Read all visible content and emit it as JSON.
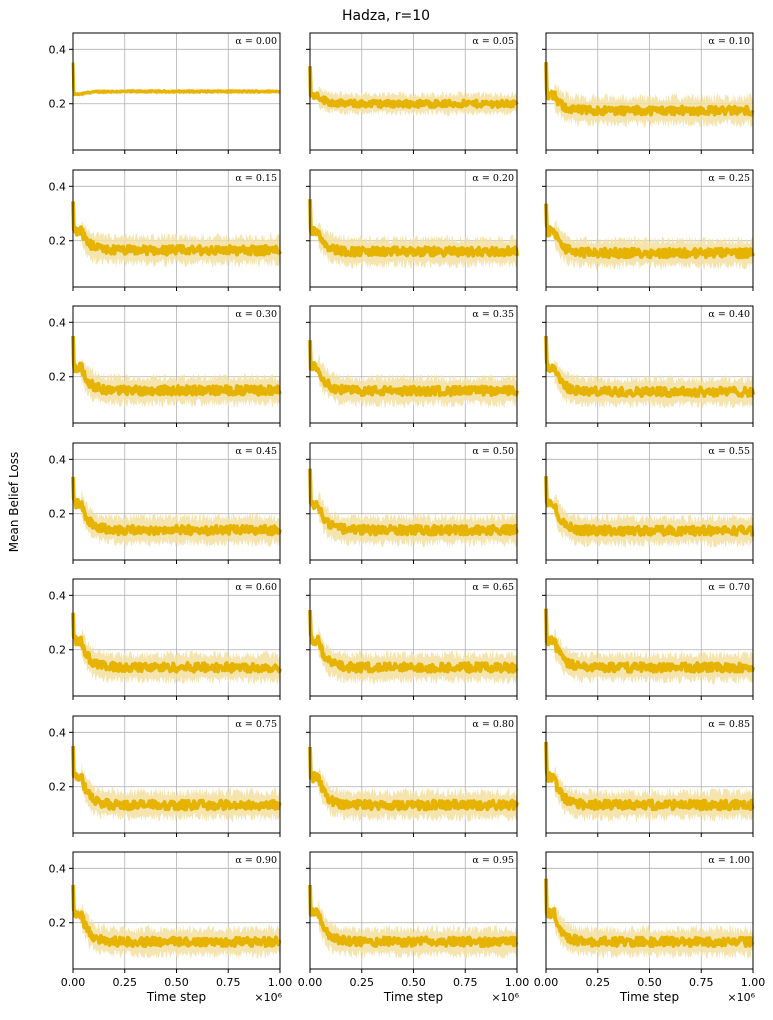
{
  "title": "Hadza, r=10",
  "ylabel": "Mean Belief Loss",
  "xlabel": "Time step",
  "x_multiplier": "×10⁶",
  "colors": {
    "line": "#e6b400",
    "band": "#f3dfa0",
    "grid": "#b0b0b0"
  },
  "chart_data": {
    "type": "line",
    "layout": "7x3 small multiples",
    "xlim": [
      0,
      1000000
    ],
    "ylim": [
      0.03,
      0.46
    ],
    "x_ticks": [
      0,
      250000,
      500000,
      750000,
      1000000
    ],
    "x_tick_labels": [
      "0.00",
      "0.25",
      "0.50",
      "0.75",
      "1.00"
    ],
    "y_ticks": [
      0.2,
      0.4
    ],
    "y_tick_labels": [
      "0.2",
      "0.4"
    ],
    "grid": true,
    "panels": [
      {
        "label": "α = 0.00",
        "start": 0.35,
        "plateau": 0.235,
        "final": 0.245,
        "band": 0.01,
        "noise": 0.003
      },
      {
        "label": "α = 0.05",
        "start": 0.35,
        "plateau": 0.23,
        "final": 0.2,
        "band": 0.04,
        "noise": 0.012
      },
      {
        "label": "α = 0.10",
        "start": 0.35,
        "plateau": 0.23,
        "final": 0.175,
        "band": 0.055,
        "noise": 0.015
      },
      {
        "label": "α = 0.15",
        "start": 0.35,
        "plateau": 0.235,
        "final": 0.165,
        "band": 0.055,
        "noise": 0.016
      },
      {
        "label": "α = 0.20",
        "start": 0.35,
        "plateau": 0.235,
        "final": 0.16,
        "band": 0.055,
        "noise": 0.016
      },
      {
        "label": "α = 0.25",
        "start": 0.35,
        "plateau": 0.235,
        "final": 0.155,
        "band": 0.055,
        "noise": 0.016
      },
      {
        "label": "α = 0.30",
        "start": 0.35,
        "plateau": 0.235,
        "final": 0.15,
        "band": 0.055,
        "noise": 0.016
      },
      {
        "label": "α = 0.35",
        "start": 0.35,
        "plateau": 0.235,
        "final": 0.148,
        "band": 0.055,
        "noise": 0.016
      },
      {
        "label": "α = 0.40",
        "start": 0.35,
        "plateau": 0.235,
        "final": 0.145,
        "band": 0.055,
        "noise": 0.016
      },
      {
        "label": "α = 0.45",
        "start": 0.35,
        "plateau": 0.235,
        "final": 0.14,
        "band": 0.055,
        "noise": 0.016
      },
      {
        "label": "α = 0.50",
        "start": 0.35,
        "plateau": 0.235,
        "final": 0.14,
        "band": 0.055,
        "noise": 0.016
      },
      {
        "label": "α = 0.55",
        "start": 0.35,
        "plateau": 0.235,
        "final": 0.138,
        "band": 0.055,
        "noise": 0.016
      },
      {
        "label": "α = 0.60",
        "start": 0.35,
        "plateau": 0.235,
        "final": 0.135,
        "band": 0.055,
        "noise": 0.016
      },
      {
        "label": "α = 0.65",
        "start": 0.35,
        "plateau": 0.235,
        "final": 0.135,
        "band": 0.055,
        "noise": 0.016
      },
      {
        "label": "α = 0.70",
        "start": 0.35,
        "plateau": 0.235,
        "final": 0.135,
        "band": 0.055,
        "noise": 0.016
      },
      {
        "label": "α = 0.75",
        "start": 0.35,
        "plateau": 0.235,
        "final": 0.133,
        "band": 0.055,
        "noise": 0.016
      },
      {
        "label": "α = 0.80",
        "start": 0.35,
        "plateau": 0.235,
        "final": 0.133,
        "band": 0.055,
        "noise": 0.016
      },
      {
        "label": "α = 0.85",
        "start": 0.35,
        "plateau": 0.235,
        "final": 0.133,
        "band": 0.055,
        "noise": 0.016
      },
      {
        "label": "α = 0.90",
        "start": 0.35,
        "plateau": 0.235,
        "final": 0.13,
        "band": 0.055,
        "noise": 0.016
      },
      {
        "label": "α = 0.95",
        "start": 0.35,
        "plateau": 0.235,
        "final": 0.13,
        "band": 0.055,
        "noise": 0.016
      },
      {
        "label": "α = 1.00",
        "start": 0.35,
        "plateau": 0.235,
        "final": 0.13,
        "band": 0.055,
        "noise": 0.016
      }
    ]
  }
}
